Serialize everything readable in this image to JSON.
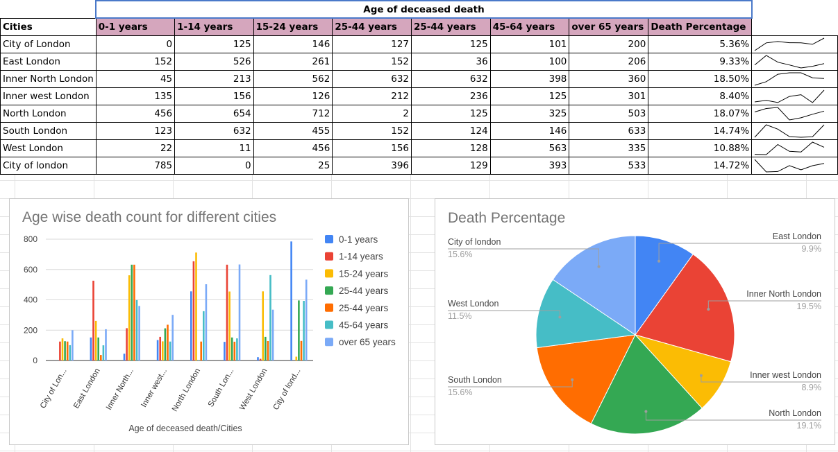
{
  "sheet": {
    "title": "Age of deceased death",
    "headers": [
      "Cities",
      "0-1 years",
      "1-14 years",
      "15-24 years",
      "25-44 years",
      "25-44 years",
      "45-64 years",
      "over 65 years",
      "Death Percentage"
    ],
    "rows": [
      {
        "city": "City of London",
        "values": [
          "0",
          "125",
          "146",
          "127",
          "125",
          "101",
          "200"
        ],
        "pct": "5.36%"
      },
      {
        "city": "East London",
        "values": [
          "152",
          "526",
          "261",
          "152",
          "36",
          "100",
          "206"
        ],
        "pct": "9.33%"
      },
      {
        "city": "Inner North London",
        "values": [
          "45",
          "213",
          "562",
          "632",
          "632",
          "398",
          "360"
        ],
        "pct": "18.50%"
      },
      {
        "city": "Inner west London",
        "values": [
          "135",
          "156",
          "126",
          "212",
          "236",
          "125",
          "301"
        ],
        "pct": "8.40%"
      },
      {
        "city": "North London",
        "values": [
          "456",
          "654",
          "712",
          "2",
          "125",
          "325",
          "503"
        ],
        "pct": "18.07%"
      },
      {
        "city": "South London",
        "values": [
          "123",
          "632",
          "455",
          "152",
          "124",
          "146",
          "633"
        ],
        "pct": "14.74%"
      },
      {
        "city": "West London",
        "values": [
          "22",
          "11",
          "456",
          "156",
          "128",
          "563",
          "335"
        ],
        "pct": "10.88%"
      },
      {
        "city": "City of london",
        "values": [
          "785",
          "0",
          "25",
          "396",
          "129",
          "393",
          "533"
        ],
        "pct": "14.72%"
      }
    ]
  },
  "chart_data": [
    {
      "type": "bar",
      "title": "Age wise death count for different cities",
      "xlabel": "Age of deceased death/Cities",
      "ylabel": "",
      "ylim": [
        0,
        800
      ],
      "yticks": [
        0,
        200,
        400,
        600,
        800
      ],
      "categories": [
        "City of Lon...",
        "East London",
        "Inner North...",
        "Inner west...",
        "North London",
        "South Lon...",
        "West London",
        "City of lond..."
      ],
      "series": [
        {
          "name": "0-1 years",
          "color": "#4285f4",
          "values": [
            0,
            152,
            45,
            135,
            456,
            123,
            22,
            785
          ]
        },
        {
          "name": "1-14 years",
          "color": "#ea4335",
          "values": [
            125,
            526,
            213,
            156,
            654,
            632,
            11,
            0
          ]
        },
        {
          "name": "15-24 years",
          "color": "#fbbc04",
          "values": [
            146,
            261,
            562,
            126,
            712,
            455,
            456,
            25
          ]
        },
        {
          "name": "25-44 years",
          "color": "#34a853",
          "values": [
            127,
            152,
            632,
            212,
            2,
            152,
            156,
            396
          ]
        },
        {
          "name": "25-44 years",
          "color": "#ff6d01",
          "values": [
            125,
            36,
            632,
            236,
            125,
            124,
            128,
            129
          ]
        },
        {
          "name": "45-64 years",
          "color": "#46bdc6",
          "values": [
            101,
            100,
            398,
            125,
            325,
            146,
            563,
            393
          ]
        },
        {
          "name": "over 65 years",
          "color": "#7baaf7",
          "values": [
            200,
            206,
            360,
            301,
            503,
            633,
            335,
            533
          ]
        }
      ],
      "legend_position": "right"
    },
    {
      "type": "pie",
      "title": "Death Percentage",
      "slices": [
        {
          "label": "East London",
          "pct_label": "9.9%",
          "value": 9.9,
          "color": "#4285f4"
        },
        {
          "label": "Inner North London",
          "pct_label": "19.5%",
          "value": 19.5,
          "color": "#ea4335"
        },
        {
          "label": "Inner west London",
          "pct_label": "8.9%",
          "value": 8.9,
          "color": "#fbbc04"
        },
        {
          "label": "North London",
          "pct_label": "19.1%",
          "value": 19.1,
          "color": "#34a853"
        },
        {
          "label": "South London",
          "pct_label": "15.6%",
          "value": 15.6,
          "color": "#ff6d01"
        },
        {
          "label": "West London",
          "pct_label": "11.5%",
          "value": 11.5,
          "color": "#46bdc6"
        },
        {
          "label": "City of london",
          "pct_label": "15.6%",
          "value": 15.6,
          "color": "#7baaf7"
        }
      ]
    }
  ]
}
